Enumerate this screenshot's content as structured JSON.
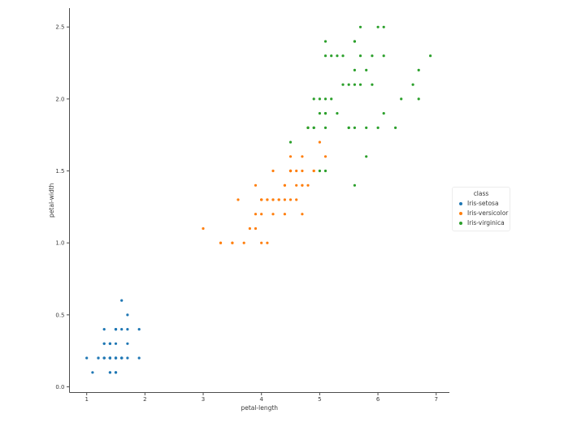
{
  "chart_data": {
    "type": "scatter",
    "title": "",
    "xlabel": "petal-length",
    "ylabel": "petal-width",
    "x_ticks": [
      "1",
      "2",
      "3",
      "4",
      "5",
      "6",
      "7"
    ],
    "y_ticks": [
      "0.0",
      "0.5",
      "1.0",
      "1.5",
      "2.0",
      "2.5"
    ],
    "xlim": [
      0.705,
      7.195
    ],
    "ylim": [
      -0.02,
      2.62
    ],
    "grid": false,
    "marker": "circle",
    "legend": {
      "title": "class",
      "position": "center-right-outside"
    },
    "series": [
      {
        "name": "Iris-setosa",
        "color": "#1f77b4",
        "points": [
          [
            1.4,
            0.2
          ],
          [
            1.4,
            0.2
          ],
          [
            1.3,
            0.2
          ],
          [
            1.5,
            0.2
          ],
          [
            1.4,
            0.2
          ],
          [
            1.7,
            0.4
          ],
          [
            1.4,
            0.3
          ],
          [
            1.5,
            0.2
          ],
          [
            1.4,
            0.2
          ],
          [
            1.5,
            0.1
          ],
          [
            1.5,
            0.2
          ],
          [
            1.6,
            0.2
          ],
          [
            1.4,
            0.1
          ],
          [
            1.1,
            0.1
          ],
          [
            1.2,
            0.2
          ],
          [
            1.5,
            0.4
          ],
          [
            1.3,
            0.4
          ],
          [
            1.4,
            0.3
          ],
          [
            1.7,
            0.3
          ],
          [
            1.5,
            0.3
          ],
          [
            1.7,
            0.2
          ],
          [
            1.5,
            0.4
          ],
          [
            1.0,
            0.2
          ],
          [
            1.7,
            0.5
          ],
          [
            1.9,
            0.2
          ],
          [
            1.6,
            0.2
          ],
          [
            1.6,
            0.4
          ],
          [
            1.5,
            0.2
          ],
          [
            1.4,
            0.2
          ],
          [
            1.6,
            0.2
          ],
          [
            1.6,
            0.2
          ],
          [
            1.5,
            0.4
          ],
          [
            1.5,
            0.1
          ],
          [
            1.4,
            0.2
          ],
          [
            1.5,
            0.1
          ],
          [
            1.2,
            0.2
          ],
          [
            1.3,
            0.2
          ],
          [
            1.4,
            0.1
          ],
          [
            1.3,
            0.2
          ],
          [
            1.5,
            0.2
          ],
          [
            1.3,
            0.3
          ],
          [
            1.3,
            0.3
          ],
          [
            1.3,
            0.2
          ],
          [
            1.6,
            0.6
          ],
          [
            1.9,
            0.4
          ],
          [
            1.4,
            0.3
          ],
          [
            1.6,
            0.2
          ],
          [
            1.4,
            0.2
          ],
          [
            1.5,
            0.2
          ],
          [
            1.4,
            0.2
          ]
        ]
      },
      {
        "name": "Iris-versicolor",
        "color": "#ff7f0e",
        "points": [
          [
            4.7,
            1.4
          ],
          [
            4.5,
            1.5
          ],
          [
            4.9,
            1.5
          ],
          [
            4.0,
            1.3
          ],
          [
            4.6,
            1.5
          ],
          [
            4.5,
            1.3
          ],
          [
            4.7,
            1.6
          ],
          [
            3.3,
            1.0
          ],
          [
            4.6,
            1.3
          ],
          [
            3.9,
            1.4
          ],
          [
            3.5,
            1.0
          ],
          [
            4.2,
            1.5
          ],
          [
            4.0,
            1.0
          ],
          [
            4.7,
            1.4
          ],
          [
            3.6,
            1.3
          ],
          [
            4.4,
            1.4
          ],
          [
            4.5,
            1.5
          ],
          [
            4.1,
            1.0
          ],
          [
            4.5,
            1.5
          ],
          [
            3.9,
            1.1
          ],
          [
            4.8,
            1.8
          ],
          [
            4.0,
            1.3
          ],
          [
            4.9,
            1.5
          ],
          [
            4.7,
            1.2
          ],
          [
            4.3,
            1.3
          ],
          [
            4.4,
            1.4
          ],
          [
            4.8,
            1.4
          ],
          [
            5.0,
            1.7
          ],
          [
            4.5,
            1.5
          ],
          [
            3.5,
            1.0
          ],
          [
            3.8,
            1.1
          ],
          [
            3.7,
            1.0
          ],
          [
            3.9,
            1.2
          ],
          [
            5.1,
            1.6
          ],
          [
            4.5,
            1.5
          ],
          [
            4.5,
            1.6
          ],
          [
            4.7,
            1.5
          ],
          [
            4.4,
            1.3
          ],
          [
            4.1,
            1.3
          ],
          [
            4.0,
            1.3
          ],
          [
            4.4,
            1.2
          ],
          [
            4.6,
            1.4
          ],
          [
            4.0,
            1.2
          ],
          [
            3.3,
            1.0
          ],
          [
            4.2,
            1.3
          ],
          [
            4.2,
            1.2
          ],
          [
            4.2,
            1.3
          ],
          [
            4.3,
            1.3
          ],
          [
            3.0,
            1.1
          ],
          [
            4.1,
            1.3
          ]
        ]
      },
      {
        "name": "Iris-virginica",
        "color": "#2ca02c",
        "points": [
          [
            6.0,
            2.5
          ],
          [
            5.1,
            1.9
          ],
          [
            5.9,
            2.1
          ],
          [
            5.6,
            1.8
          ],
          [
            5.8,
            2.2
          ],
          [
            6.6,
            2.1
          ],
          [
            4.5,
            1.7
          ],
          [
            6.3,
            1.8
          ],
          [
            5.8,
            1.8
          ],
          [
            6.1,
            2.5
          ],
          [
            5.1,
            2.0
          ],
          [
            5.3,
            1.9
          ],
          [
            5.5,
            2.1
          ],
          [
            5.0,
            2.0
          ],
          [
            5.1,
            2.4
          ],
          [
            5.3,
            2.3
          ],
          [
            5.5,
            1.8
          ],
          [
            6.7,
            2.2
          ],
          [
            6.9,
            2.3
          ],
          [
            5.0,
            1.5
          ],
          [
            5.7,
            2.3
          ],
          [
            4.9,
            2.0
          ],
          [
            6.7,
            2.0
          ],
          [
            4.9,
            1.8
          ],
          [
            5.7,
            2.1
          ],
          [
            6.0,
            1.8
          ],
          [
            4.8,
            1.8
          ],
          [
            4.9,
            1.8
          ],
          [
            5.6,
            2.1
          ],
          [
            5.8,
            1.6
          ],
          [
            6.1,
            1.9
          ],
          [
            6.4,
            2.0
          ],
          [
            5.6,
            2.2
          ],
          [
            5.1,
            1.5
          ],
          [
            5.6,
            1.4
          ],
          [
            6.1,
            2.3
          ],
          [
            5.6,
            2.4
          ],
          [
            5.5,
            1.8
          ],
          [
            4.8,
            1.8
          ],
          [
            5.4,
            2.1
          ],
          [
            5.6,
            2.4
          ],
          [
            5.1,
            2.3
          ],
          [
            5.1,
            1.9
          ],
          [
            5.9,
            2.3
          ],
          [
            5.7,
            2.5
          ],
          [
            5.2,
            2.3
          ],
          [
            5.0,
            1.9
          ],
          [
            5.2,
            2.0
          ],
          [
            5.4,
            2.3
          ],
          [
            5.1,
            1.8
          ]
        ]
      }
    ]
  }
}
